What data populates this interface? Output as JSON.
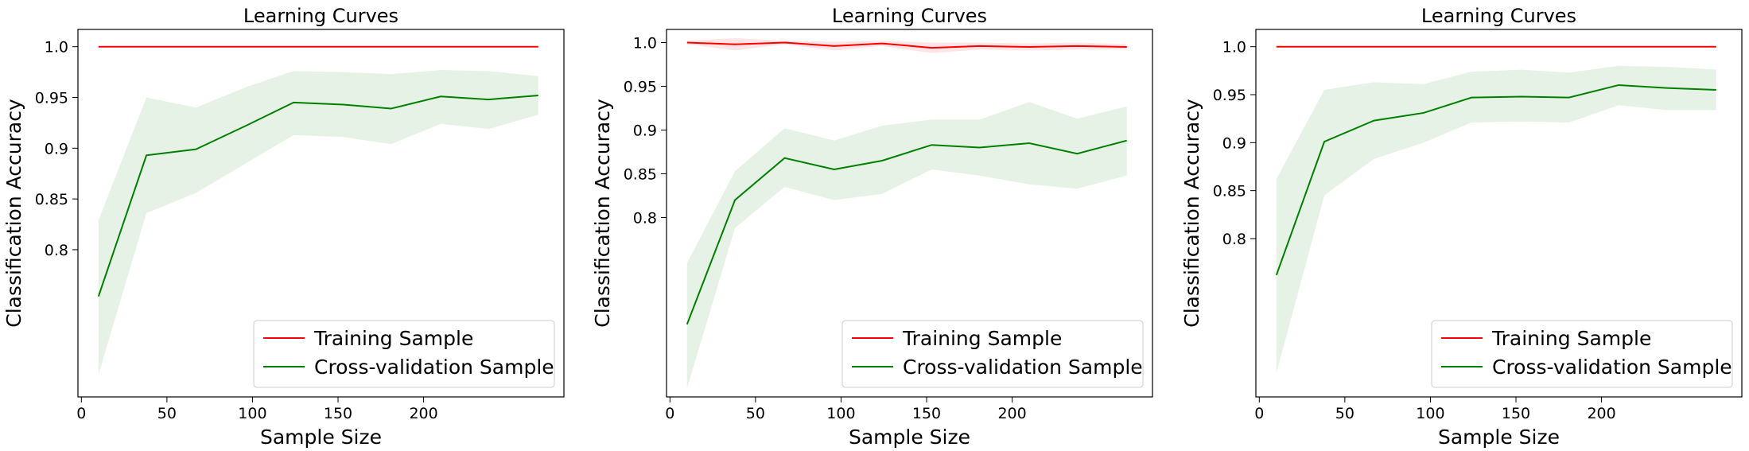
{
  "figure": {
    "colors": {
      "training": "#ff0000",
      "cv": "#008000",
      "band_training": "#ff0000",
      "band_cv": "#008000"
    }
  },
  "chart_data": [
    {
      "type": "line",
      "title": "Learning Curves",
      "xlabel": "Sample Size",
      "ylabel": "Classification Accuracy",
      "xlim": [
        -2,
        282
      ],
      "ylim": [
        0.655,
        1.017
      ],
      "xticks": [
        0,
        50,
        100,
        150,
        200
      ],
      "yticks": [
        0.8,
        0.85,
        0.9,
        0.95,
        1.0
      ],
      "ytick_labels": [
        "0.8",
        "0.85",
        "0.9",
        "0.95",
        "1.0"
      ],
      "legend": "lower-right",
      "x": [
        10,
        38,
        67,
        96,
        124,
        153,
        181,
        210,
        238,
        267
      ],
      "series": [
        {
          "name": "Training Sample",
          "color": "#ff0000",
          "values": [
            1.0,
            1.0,
            1.0,
            1.0,
            1.0,
            1.0,
            1.0,
            1.0,
            1.0,
            1.0
          ],
          "lower": [
            1.0,
            1.0,
            1.0,
            1.0,
            1.0,
            1.0,
            1.0,
            1.0,
            1.0,
            1.0
          ],
          "upper": [
            1.0,
            1.0,
            1.0,
            1.0,
            1.0,
            1.0,
            1.0,
            1.0,
            1.0,
            1.0
          ]
        },
        {
          "name": "Cross-validation Sample",
          "color": "#008000",
          "values": [
            0.754,
            0.893,
            0.899,
            0.922,
            0.945,
            0.943,
            0.939,
            0.951,
            0.948,
            0.952
          ],
          "lower": [
            0.677,
            0.836,
            0.856,
            0.885,
            0.913,
            0.911,
            0.904,
            0.924,
            0.919,
            0.933
          ],
          "upper": [
            0.829,
            0.95,
            0.94,
            0.96,
            0.976,
            0.975,
            0.973,
            0.977,
            0.976,
            0.971
          ]
        }
      ]
    },
    {
      "type": "line",
      "title": "Learning Curves",
      "xlabel": "Sample Size",
      "ylabel": "Classification Accuracy",
      "xlim": [
        -2,
        282
      ],
      "ylim": [
        0.595,
        1.015
      ],
      "xticks": [
        0,
        50,
        100,
        150,
        200
      ],
      "yticks": [
        0.8,
        0.85,
        0.9,
        0.95,
        1.0
      ],
      "ytick_labels": [
        "0.8",
        "0.85",
        "0.9",
        "0.95",
        "1.0"
      ],
      "legend": "lower-right",
      "x": [
        10,
        38,
        67,
        96,
        124,
        153,
        181,
        210,
        238,
        267
      ],
      "series": [
        {
          "name": "Training Sample",
          "color": "#ff0000",
          "values": [
            1.0,
            0.998,
            1.0,
            0.996,
            0.999,
            0.994,
            0.996,
            0.995,
            0.996,
            0.995
          ],
          "lower": [
            0.998,
            0.991,
            0.998,
            0.991,
            0.996,
            0.988,
            0.992,
            0.991,
            0.992,
            0.992
          ],
          "upper": [
            1.002,
            1.005,
            1.002,
            1.001,
            1.002,
            1.0,
            1.0,
            0.999,
            1.0,
            0.998
          ]
        },
        {
          "name": "Cross-validation Sample",
          "color": "#008000",
          "values": [
            0.678,
            0.82,
            0.868,
            0.855,
            0.865,
            0.883,
            0.88,
            0.885,
            0.873,
            0.888
          ],
          "lower": [
            0.605,
            0.788,
            0.835,
            0.82,
            0.827,
            0.855,
            0.848,
            0.838,
            0.833,
            0.848
          ],
          "upper": [
            0.748,
            0.853,
            0.902,
            0.888,
            0.905,
            0.912,
            0.912,
            0.932,
            0.913,
            0.927
          ]
        }
      ]
    },
    {
      "type": "line",
      "title": "Learning Curves",
      "xlabel": "Sample Size",
      "ylabel": "Classification Accuracy",
      "xlim": [
        -2,
        282
      ],
      "ylim": [
        0.635,
        1.018
      ],
      "xticks": [
        0,
        50,
        100,
        150,
        200
      ],
      "yticks": [
        0.8,
        0.85,
        0.9,
        0.95,
        1.0
      ],
      "ytick_labels": [
        "0.8",
        "0.85",
        "0.9",
        "0.95",
        "1.0"
      ],
      "legend": "lower-right",
      "x": [
        10,
        38,
        67,
        96,
        124,
        153,
        181,
        210,
        238,
        267
      ],
      "series": [
        {
          "name": "Training Sample",
          "color": "#ff0000",
          "values": [
            1.0,
            1.0,
            1.0,
            1.0,
            1.0,
            1.0,
            1.0,
            1.0,
            1.0,
            1.0
          ],
          "lower": [
            1.0,
            1.0,
            1.0,
            1.0,
            1.0,
            1.0,
            1.0,
            1.0,
            1.0,
            1.0
          ],
          "upper": [
            1.0,
            1.0,
            1.0,
            1.0,
            1.0,
            1.0,
            1.0,
            1.0,
            1.0,
            1.0
          ]
        },
        {
          "name": "Cross-validation Sample",
          "color": "#008000",
          "values": [
            0.762,
            0.901,
            0.923,
            0.931,
            0.947,
            0.948,
            0.947,
            0.96,
            0.957,
            0.955
          ],
          "lower": [
            0.66,
            0.845,
            0.883,
            0.9,
            0.921,
            0.922,
            0.921,
            0.939,
            0.934,
            0.934
          ],
          "upper": [
            0.862,
            0.955,
            0.963,
            0.961,
            0.974,
            0.976,
            0.973,
            0.98,
            0.979,
            0.976
          ]
        }
      ]
    }
  ]
}
